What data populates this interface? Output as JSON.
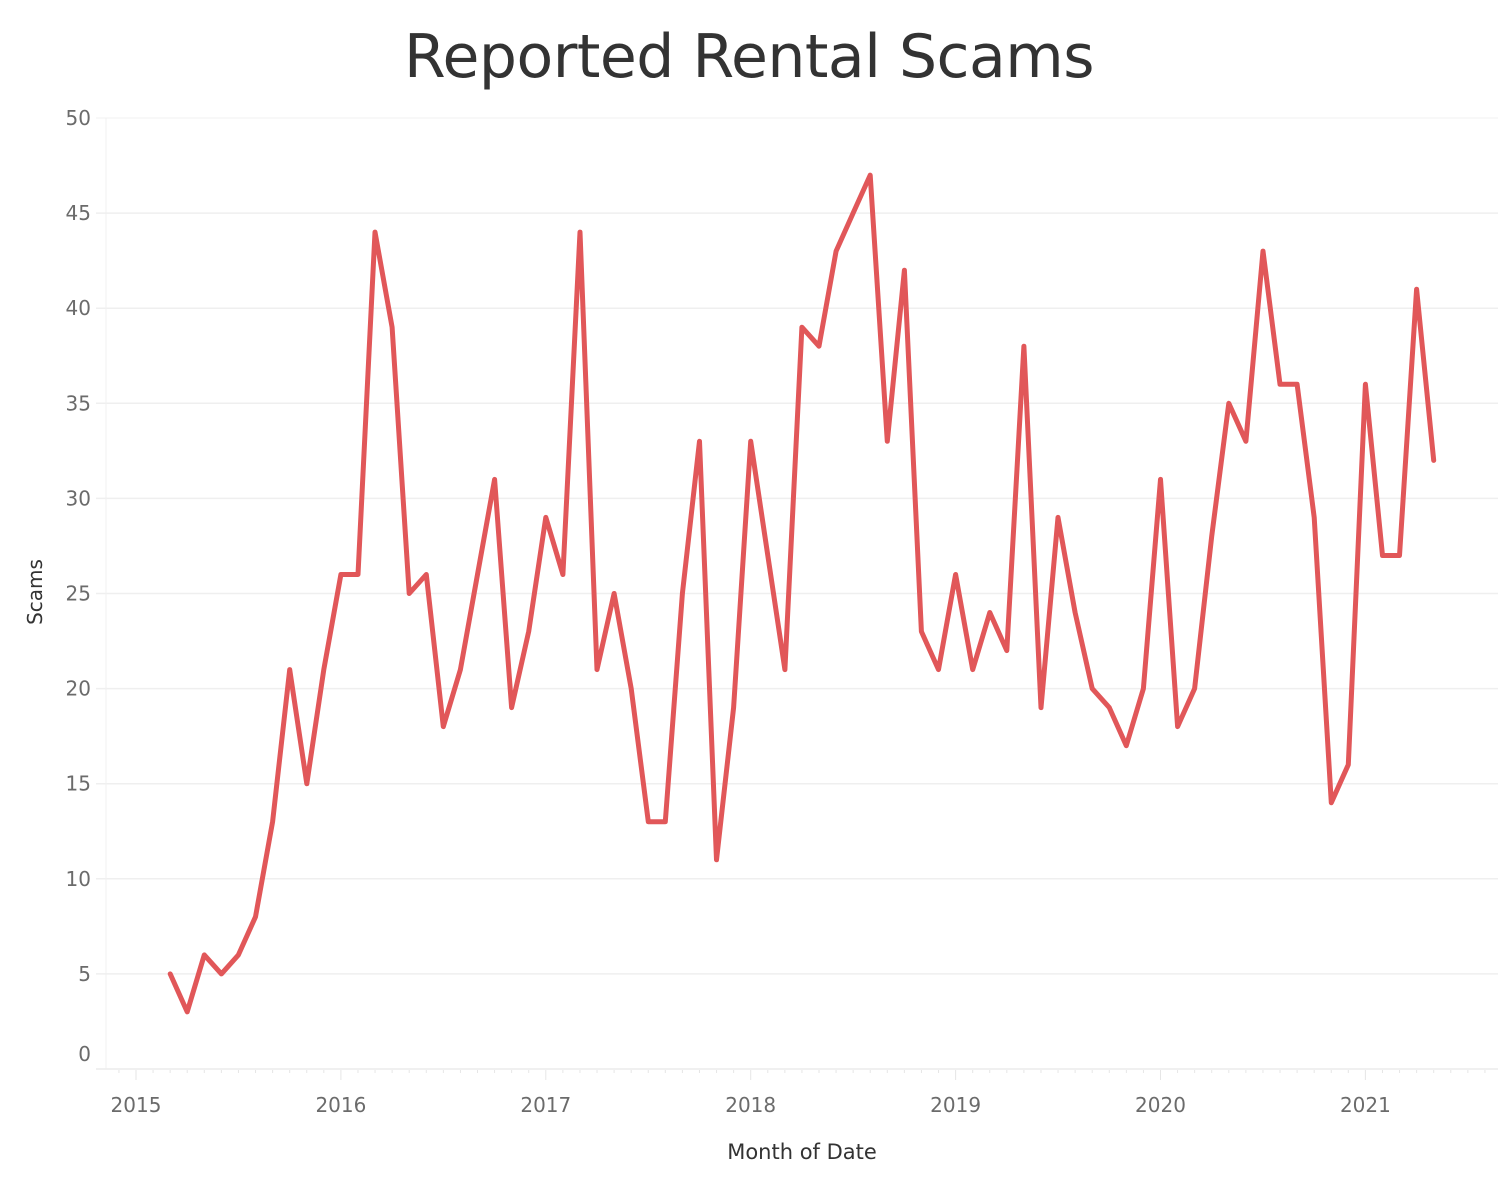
{
  "chart_data": {
    "type": "line",
    "title": "Reported Rental Scams",
    "xlabel": "Month of Date",
    "ylabel": "Scams",
    "ylim": [
      0,
      50
    ],
    "yticks": [
      0,
      5,
      10,
      15,
      20,
      25,
      30,
      35,
      40,
      45,
      50
    ],
    "xticks": [
      "2015",
      "2016",
      "2017",
      "2018",
      "2019",
      "2020",
      "2021"
    ],
    "grid": {
      "horizontal": true,
      "vertical": false
    },
    "legend": null,
    "line_color": "#e15759",
    "series": [
      {
        "name": "Scams",
        "x": [
          "2015-03",
          "2015-04",
          "2015-05",
          "2015-06",
          "2015-07",
          "2015-08",
          "2015-09",
          "2015-10",
          "2015-11",
          "2015-12",
          "2016-01",
          "2016-02",
          "2016-03",
          "2016-04",
          "2016-05",
          "2016-06",
          "2016-07",
          "2016-08",
          "2016-09",
          "2016-10",
          "2016-11",
          "2016-12",
          "2017-01",
          "2017-02",
          "2017-03",
          "2017-04",
          "2017-05",
          "2017-06",
          "2017-07",
          "2017-08",
          "2017-09",
          "2017-10",
          "2017-11",
          "2017-12",
          "2018-01",
          "2018-02",
          "2018-03",
          "2018-04",
          "2018-05",
          "2018-06",
          "2018-07",
          "2018-08",
          "2018-09",
          "2018-10",
          "2018-11",
          "2018-12",
          "2019-01",
          "2019-02",
          "2019-03",
          "2019-04",
          "2019-05",
          "2019-06",
          "2019-07",
          "2019-08",
          "2019-09",
          "2019-10",
          "2019-11",
          "2019-12",
          "2020-01",
          "2020-02",
          "2020-03",
          "2020-04",
          "2020-05",
          "2020-06",
          "2020-07",
          "2020-08",
          "2020-09",
          "2020-10",
          "2020-11",
          "2020-12",
          "2021-01",
          "2021-02",
          "2021-03",
          "2021-04",
          "2021-05"
        ],
        "values": [
          5,
          3,
          6,
          5,
          6,
          8,
          13,
          21,
          15,
          21,
          26,
          26,
          44,
          39,
          25,
          26,
          18,
          21,
          26,
          31,
          19,
          23,
          29,
          26,
          44,
          21,
          25,
          20,
          13,
          13,
          25,
          33,
          11,
          19,
          33,
          27,
          21,
          39,
          38,
          43,
          45,
          47,
          33,
          42,
          23,
          21,
          26,
          21,
          24,
          22,
          38,
          19,
          29,
          24,
          20,
          19,
          17,
          20,
          31,
          18,
          20,
          28,
          35,
          33,
          43,
          36,
          36,
          29,
          14,
          16,
          36,
          27,
          27,
          41,
          32
        ]
      }
    ]
  }
}
